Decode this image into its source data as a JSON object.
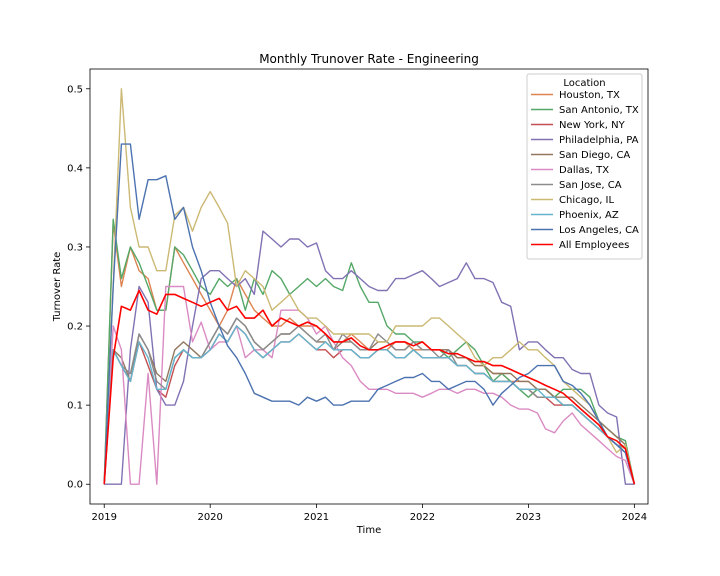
{
  "chart_data": {
    "type": "line",
    "title": "Monthly Trunover Rate - Engineering",
    "xlabel": "Time",
    "ylabel": "Turnover Rate",
    "xlim": [
      "2018-11-13",
      "2024-02-17"
    ],
    "ylim": [
      -0.025,
      0.525
    ],
    "x_ticks": [
      "2019",
      "2020",
      "2021",
      "2022",
      "2023",
      "2024"
    ],
    "y_ticks": [
      "0.0",
      "0.1",
      "0.2",
      "0.3",
      "0.4",
      "0.5"
    ],
    "legend": {
      "title": "Location",
      "placement": "upper right"
    },
    "x": [
      "2019-01",
      "2019-02",
      "2019-03",
      "2019-04",
      "2019-05",
      "2019-06",
      "2019-07",
      "2019-08",
      "2019-09",
      "2019-10",
      "2019-11",
      "2019-12",
      "2020-01",
      "2020-02",
      "2020-03",
      "2020-04",
      "2020-05",
      "2020-06",
      "2020-07",
      "2020-08",
      "2020-09",
      "2020-10",
      "2020-11",
      "2020-12",
      "2021-01",
      "2021-02",
      "2021-03",
      "2021-04",
      "2021-05",
      "2021-06",
      "2021-07",
      "2021-08",
      "2021-09",
      "2021-10",
      "2021-11",
      "2021-12",
      "2022-01",
      "2022-02",
      "2022-03",
      "2022-04",
      "2022-05",
      "2022-06",
      "2022-07",
      "2022-08",
      "2022-09",
      "2022-10",
      "2022-11",
      "2022-12",
      "2023-01",
      "2023-02",
      "2023-03",
      "2023-04",
      "2023-05",
      "2023-06",
      "2023-07",
      "2023-08",
      "2023-09",
      "2023-10",
      "2023-11",
      "2023-12",
      "2024-01"
    ],
    "series": [
      {
        "name": "Houston, TX",
        "color": "#dd8452",
        "values": [
          0,
          0.33,
          0.25,
          0.3,
          0.27,
          0.26,
          0.22,
          0.22,
          0.3,
          0.28,
          0.26,
          0.24,
          0.22,
          0.2,
          0.22,
          0.26,
          0.24,
          0.22,
          0.21,
          0.2,
          0.2,
          0.21,
          0.2,
          0.2,
          0.2,
          0.19,
          0.18,
          0.18,
          0.19,
          0.18,
          0.17,
          0.17,
          0.17,
          0.18,
          0.18,
          0.17,
          0.17,
          0.17,
          0.17,
          0.17,
          0.16,
          0.16,
          0.15,
          0.15,
          0.14,
          0.14,
          0.13,
          0.13,
          0.13,
          0.12,
          0.12,
          0.11,
          0.1,
          0.1,
          0.09,
          0.08,
          0.07,
          0.06,
          0.05,
          0.04,
          0
        ]
      },
      {
        "name": "San Antonio, TX",
        "color": "#55a868",
        "values": [
          0,
          0.335,
          0.26,
          0.3,
          0.28,
          0.25,
          0.22,
          0.22,
          0.3,
          0.29,
          0.27,
          0.25,
          0.24,
          0.26,
          0.25,
          0.26,
          0.22,
          0.26,
          0.24,
          0.27,
          0.26,
          0.24,
          0.25,
          0.26,
          0.25,
          0.26,
          0.25,
          0.245,
          0.28,
          0.25,
          0.23,
          0.23,
          0.2,
          0.19,
          0.19,
          0.18,
          0.18,
          0.17,
          0.17,
          0.16,
          0.17,
          0.18,
          0.17,
          0.15,
          0.13,
          0.14,
          0.13,
          0.12,
          0.11,
          0.12,
          0.12,
          0.11,
          0.12,
          0.12,
          0.12,
          0.11,
          0.08,
          0.07,
          0.06,
          0.055,
          0
        ]
      },
      {
        "name": "New York, NY",
        "color": "#c44e52",
        "values": [
          0,
          0.17,
          0.15,
          0.13,
          0.18,
          0.15,
          0.12,
          0.11,
          0.15,
          0.17,
          0.16,
          0.16,
          0.17,
          0.19,
          0.18,
          0.2,
          0.19,
          0.17,
          0.16,
          0.17,
          0.18,
          0.18,
          0.19,
          0.18,
          0.17,
          0.17,
          0.16,
          0.17,
          0.17,
          0.16,
          0.16,
          0.17,
          0.17,
          0.16,
          0.16,
          0.17,
          0.16,
          0.16,
          0.16,
          0.16,
          0.15,
          0.15,
          0.14,
          0.14,
          0.13,
          0.13,
          0.13,
          0.12,
          0.12,
          0.11,
          0.11,
          0.1,
          0.1,
          0.1,
          0.09,
          0.08,
          0.07,
          0.06,
          0.05,
          0.04,
          0
        ]
      },
      {
        "name": "Philadelphia, PA",
        "color": "#8172b3",
        "values": [
          0,
          0,
          0,
          0.17,
          0.25,
          0.23,
          0.12,
          0.1,
          0.1,
          0.13,
          0.2,
          0.26,
          0.27,
          0.27,
          0.26,
          0.25,
          0.26,
          0.24,
          0.32,
          0.31,
          0.3,
          0.31,
          0.31,
          0.3,
          0.305,
          0.27,
          0.26,
          0.26,
          0.27,
          0.26,
          0.25,
          0.245,
          0.245,
          0.26,
          0.26,
          0.265,
          0.27,
          0.26,
          0.25,
          0.255,
          0.26,
          0.28,
          0.26,
          0.26,
          0.255,
          0.23,
          0.225,
          0.17,
          0.18,
          0.18,
          0.17,
          0.16,
          0.16,
          0.145,
          0.14,
          0.14,
          0.1,
          0.09,
          0.085,
          0,
          0
        ]
      },
      {
        "name": "San Diego, CA",
        "color": "#937860",
        "values": [
          0,
          0.17,
          0.16,
          0.13,
          0.19,
          0.17,
          0.14,
          0.13,
          0.17,
          0.18,
          0.17,
          0.16,
          0.18,
          0.2,
          0.19,
          0.21,
          0.2,
          0.18,
          0.17,
          0.18,
          0.19,
          0.19,
          0.2,
          0.19,
          0.18,
          0.18,
          0.17,
          0.18,
          0.18,
          0.17,
          0.17,
          0.18,
          0.18,
          0.17,
          0.17,
          0.18,
          0.17,
          0.17,
          0.17,
          0.17,
          0.16,
          0.16,
          0.15,
          0.15,
          0.14,
          0.14,
          0.14,
          0.13,
          0.13,
          0.12,
          0.12,
          0.11,
          0.11,
          0.11,
          0.1,
          0.09,
          0.08,
          0.07,
          0.06,
          0.05,
          0
        ]
      },
      {
        "name": "Dallas, TX",
        "color": "#da8bc3",
        "values": [
          0,
          0.2,
          0.17,
          0,
          0,
          0.14,
          0,
          0.25,
          0.25,
          0.25,
          0.18,
          0.205,
          0.17,
          0.18,
          0.18,
          0.2,
          0.16,
          0.17,
          0.17,
          0.16,
          0.22,
          0.22,
          0.22,
          0.21,
          0.19,
          0.2,
          0.18,
          0.16,
          0.15,
          0.13,
          0.12,
          0.12,
          0.12,
          0.115,
          0.115,
          0.115,
          0.11,
          0.115,
          0.12,
          0.12,
          0.115,
          0.12,
          0.12,
          0.115,
          0.115,
          0.11,
          0.1,
          0.095,
          0.095,
          0.09,
          0.07,
          0.065,
          0.08,
          0.09,
          0.075,
          0.065,
          0.055,
          0.045,
          0.035,
          0.03,
          0
        ]
      },
      {
        "name": "San Jose, CA",
        "color": "#8c8c8c",
        "values": [
          0,
          0.17,
          0.15,
          0.14,
          0.19,
          0.17,
          0.13,
          0.12,
          0.16,
          0.17,
          0.16,
          0.16,
          0.18,
          0.2,
          0.19,
          0.21,
          0.2,
          0.18,
          0.17,
          0.18,
          0.19,
          0.19,
          0.2,
          0.19,
          0.18,
          0.19,
          0.17,
          0.19,
          0.18,
          0.17,
          0.17,
          0.19,
          0.18,
          0.17,
          0.17,
          0.18,
          0.17,
          0.17,
          0.16,
          0.17,
          0.15,
          0.15,
          0.14,
          0.14,
          0.13,
          0.13,
          0.13,
          0.12,
          0.12,
          0.11,
          0.11,
          0.11,
          0.1,
          0.1,
          0.09,
          0.08,
          0.07,
          0.06,
          0.05,
          0.045,
          0
        ]
      },
      {
        "name": "Chicago, IL",
        "color": "#ccb974",
        "values": [
          0,
          0.25,
          0.5,
          0.35,
          0.3,
          0.3,
          0.27,
          0.27,
          0.34,
          0.35,
          0.32,
          0.35,
          0.37,
          0.35,
          0.33,
          0.25,
          0.27,
          0.26,
          0.25,
          0.22,
          0.23,
          0.24,
          0.22,
          0.21,
          0.21,
          0.2,
          0.19,
          0.19,
          0.19,
          0.19,
          0.19,
          0.18,
          0.18,
          0.2,
          0.2,
          0.2,
          0.2,
          0.21,
          0.21,
          0.2,
          0.19,
          0.18,
          0.16,
          0.15,
          0.16,
          0.16,
          0.17,
          0.18,
          0.17,
          0.17,
          0.16,
          0.15,
          0.13,
          0.12,
          0.11,
          0.1,
          0.08,
          0.06,
          0.04,
          0.05,
          0
        ]
      },
      {
        "name": "Phoenix, AZ",
        "color": "#64b5cd",
        "values": [
          0,
          0.17,
          0.15,
          0.13,
          0.18,
          0.16,
          0.12,
          0.12,
          0.16,
          0.17,
          0.16,
          0.16,
          0.17,
          0.19,
          0.18,
          0.2,
          0.19,
          0.17,
          0.16,
          0.17,
          0.18,
          0.18,
          0.19,
          0.18,
          0.17,
          0.18,
          0.17,
          0.17,
          0.17,
          0.16,
          0.16,
          0.17,
          0.17,
          0.16,
          0.16,
          0.17,
          0.16,
          0.16,
          0.16,
          0.16,
          0.15,
          0.15,
          0.14,
          0.14,
          0.13,
          0.13,
          0.13,
          0.12,
          0.12,
          0.12,
          0.11,
          0.11,
          0.1,
          0.1,
          0.09,
          0.08,
          0.07,
          0.06,
          0.05,
          0.04,
          0
        ]
      },
      {
        "name": "Los Angeles, CA",
        "color": "#4c72b0",
        "values": [
          0,
          0.25,
          0.43,
          0.43,
          0.335,
          0.385,
          0.385,
          0.39,
          0.335,
          0.35,
          0.3,
          0.27,
          0.23,
          0.2,
          0.175,
          0.16,
          0.14,
          0.115,
          0.11,
          0.105,
          0.105,
          0.105,
          0.1,
          0.11,
          0.105,
          0.11,
          0.1,
          0.1,
          0.105,
          0.105,
          0.105,
          0.12,
          0.125,
          0.13,
          0.135,
          0.135,
          0.14,
          0.13,
          0.13,
          0.12,
          0.125,
          0.13,
          0.13,
          0.12,
          0.1,
          0.115,
          0.125,
          0.135,
          0.14,
          0.15,
          0.15,
          0.15,
          0.13,
          0.125,
          0.115,
          0.1,
          0.08,
          0.06,
          0.05,
          0.04,
          0
        ]
      },
      {
        "name": "All Employees",
        "color": "#ff0000",
        "values": [
          0,
          0.16,
          0.225,
          0.22,
          0.245,
          0.22,
          0.215,
          0.24,
          0.24,
          0.235,
          0.23,
          0.225,
          0.23,
          0.235,
          0.22,
          0.225,
          0.21,
          0.21,
          0.22,
          0.2,
          0.21,
          0.205,
          0.2,
          0.205,
          0.2,
          0.19,
          0.18,
          0.18,
          0.185,
          0.175,
          0.17,
          0.17,
          0.175,
          0.18,
          0.18,
          0.175,
          0.18,
          0.17,
          0.17,
          0.165,
          0.165,
          0.16,
          0.155,
          0.155,
          0.15,
          0.15,
          0.145,
          0.14,
          0.135,
          0.13,
          0.125,
          0.12,
          0.115,
          0.105,
          0.095,
          0.085,
          0.075,
          0.06,
          0.055,
          0.045,
          0
        ]
      }
    ]
  }
}
